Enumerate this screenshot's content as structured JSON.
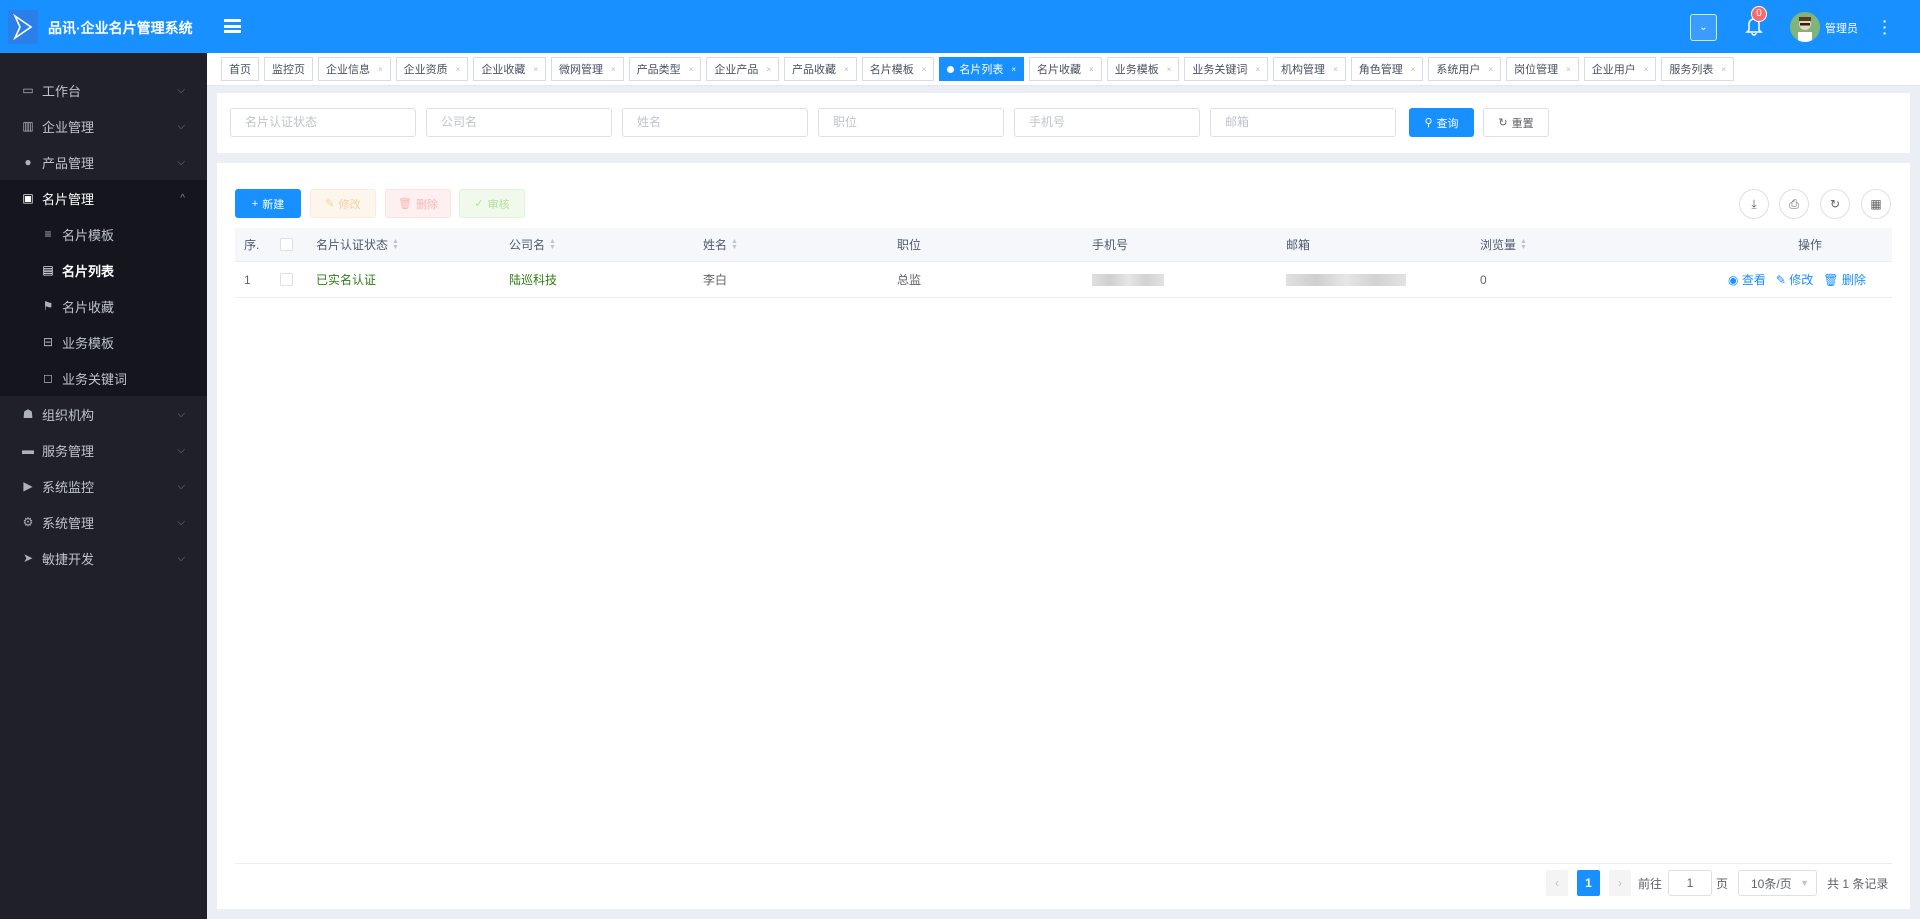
{
  "header": {
    "title": "品讯·企业名片管理系统",
    "notification_count": "0",
    "user": "管理员",
    "colors": {
      "primary": "#1890ff",
      "sidebar": "#1f2029"
    }
  },
  "sidebar": {
    "items": [
      {
        "label": "工作台",
        "icon": "monitor-icon"
      },
      {
        "label": "企业管理",
        "icon": "building-icon"
      },
      {
        "label": "产品管理",
        "icon": "circle-icon"
      },
      {
        "label": "名片管理",
        "icon": "id-card-icon",
        "open": true,
        "children": [
          {
            "label": "名片模板",
            "icon": "list-icon"
          },
          {
            "label": "名片列表",
            "icon": "table-icon",
            "active": true
          },
          {
            "label": "名片收藏",
            "icon": "flag-icon"
          },
          {
            "label": "业务模板",
            "icon": "form-icon"
          },
          {
            "label": "业务关键词",
            "icon": "tag-icon"
          }
        ]
      },
      {
        "label": "组织机构",
        "icon": "users-icon"
      },
      {
        "label": "服务管理",
        "icon": "briefcase-icon"
      },
      {
        "label": "系统监控",
        "icon": "play-circle-icon"
      },
      {
        "label": "系统管理",
        "icon": "gears-icon"
      },
      {
        "label": "敏捷开发",
        "icon": "paper-plane-icon"
      }
    ]
  },
  "tabs": [
    {
      "label": "首页"
    },
    {
      "label": "监控页"
    },
    {
      "label": "企业信息",
      "closable": true
    },
    {
      "label": "企业资质",
      "closable": true
    },
    {
      "label": "企业收藏",
      "closable": true
    },
    {
      "label": "微网管理",
      "closable": true
    },
    {
      "label": "产品类型",
      "closable": true
    },
    {
      "label": "企业产品",
      "closable": true
    },
    {
      "label": "产品收藏",
      "closable": true
    },
    {
      "label": "名片模板",
      "closable": true
    },
    {
      "label": "名片列表",
      "closable": true,
      "active": true
    },
    {
      "label": "名片收藏",
      "closable": true
    },
    {
      "label": "业务模板",
      "closable": true
    },
    {
      "label": "业务关键词",
      "closable": true
    },
    {
      "label": "机构管理",
      "closable": true
    },
    {
      "label": "角色管理",
      "closable": true
    },
    {
      "label": "系统用户",
      "closable": true
    },
    {
      "label": "岗位管理",
      "closable": true
    },
    {
      "label": "企业用户",
      "closable": true
    },
    {
      "label": "服务列表",
      "closable": true
    }
  ],
  "search": {
    "placeholders": [
      "名片认证状态",
      "公司名",
      "姓名",
      "职位",
      "手机号",
      "邮箱"
    ],
    "query": "查询",
    "reset": "重置"
  },
  "toolbar": {
    "add": "新建",
    "edit": "修改",
    "delete": "删除",
    "audit": "审核"
  },
  "table": {
    "columns": [
      "序.",
      "",
      "名片认证状态",
      "公司名",
      "姓名",
      "职位",
      "手机号",
      "邮箱",
      "浏览量",
      "操作"
    ],
    "rows": [
      {
        "index": "1",
        "status": "已实名认证",
        "company": "陆巡科技",
        "name": "李白",
        "position": "总监",
        "phone": "",
        "email": "",
        "views": "0"
      }
    ],
    "actions": {
      "view": "查看",
      "edit": "修改",
      "delete": "删除"
    }
  },
  "pagination": {
    "current": "1",
    "goto_label": "前往",
    "goto_value": "1",
    "page_unit": "页",
    "page_size": "10条/页",
    "total": "共 1 条记录"
  }
}
